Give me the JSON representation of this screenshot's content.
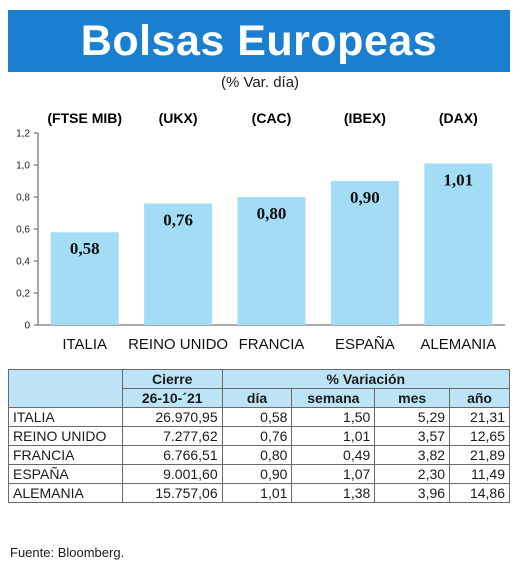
{
  "header": {
    "title": "Bolsas Europeas",
    "subtitle": "(% Var. día)"
  },
  "chart_data": {
    "type": "bar",
    "indices": [
      "(FTSE MIB)",
      "(UKX)",
      "(CAC)",
      "(IBEX)",
      "(DAX)"
    ],
    "categories": [
      "ITALIA",
      "REINO UNIDO",
      "FRANCIA",
      "ESPAÑA",
      "ALEMANIA"
    ],
    "values": [
      0.58,
      0.76,
      0.8,
      0.9,
      1.01
    ],
    "value_labels": [
      "0,58",
      "0,76",
      "0,80",
      "0,90",
      "1,01"
    ],
    "ylim": [
      0,
      1.2
    ],
    "yticks": [
      "0",
      "0,2",
      "0,4",
      "0,6",
      "0,8",
      "1,0",
      "1,2"
    ],
    "bar_color": "#a3dcf5",
    "grid": false
  },
  "table": {
    "group_headers": {
      "cierre": "Cierre",
      "variacion": "% Variación"
    },
    "columns": [
      "26-10-´21",
      "día",
      "semana",
      "mes",
      "año"
    ],
    "rows": [
      {
        "country": "ITALIA",
        "cierre": "26.970,95",
        "dia": "0,58",
        "semana": "1,50",
        "mes": "5,29",
        "ano": "21,31"
      },
      {
        "country": "REINO UNIDO",
        "cierre": "7.277,62",
        "dia": "0,76",
        "semana": "1,01",
        "mes": "3,57",
        "ano": "12,65"
      },
      {
        "country": "FRANCIA",
        "cierre": "6.766,51",
        "dia": "0,80",
        "semana": "0,49",
        "mes": "3,82",
        "ano": "21,89"
      },
      {
        "country": "ESPAÑA",
        "cierre": "9.001,60",
        "dia": "0,90",
        "semana": "1,07",
        "mes": "2,30",
        "ano": "11,49"
      },
      {
        "country": "ALEMANIA",
        "cierre": "15.757,06",
        "dia": "1,01",
        "semana": "1,38",
        "mes": "3,96",
        "ano": "14,86"
      }
    ]
  },
  "footer": {
    "source": "Fuente: Bloomberg."
  },
  "colors": {
    "banner": "#1a7fd0",
    "table_header": "#bde4f6"
  }
}
